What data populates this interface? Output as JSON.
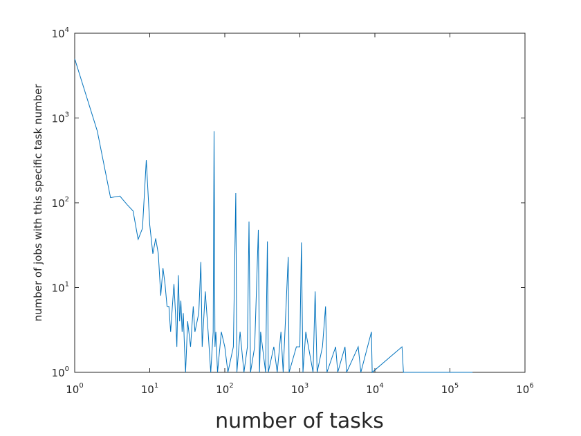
{
  "chart_data": {
    "type": "line",
    "x_label": "number of tasks",
    "y_label": "number of jobs with this specific task number",
    "x_log": true,
    "y_log": true,
    "xlim": [
      1,
      1000000
    ],
    "ylim": [
      1,
      10000
    ],
    "xticks": [
      {
        "value": 1,
        "label": "10^0"
      },
      {
        "value": 10,
        "label": "10^1"
      },
      {
        "value": 100,
        "label": "10^2"
      },
      {
        "value": 1000,
        "label": "10^3"
      },
      {
        "value": 10000,
        "label": "10^4"
      },
      {
        "value": 100000,
        "label": "10^5"
      },
      {
        "value": 1000000,
        "label": "10^6"
      }
    ],
    "yticks": [
      {
        "value": 1,
        "label": "10^0"
      },
      {
        "value": 10,
        "label": "10^1"
      },
      {
        "value": 100,
        "label": "10^2"
      },
      {
        "value": 1000,
        "label": "10^3"
      },
      {
        "value": 10000,
        "label": "10^4"
      }
    ],
    "grid": false,
    "series": [
      {
        "color": "#0072bd",
        "x": [
          1,
          2,
          3,
          4,
          5,
          6,
          7,
          8,
          9,
          10,
          11,
          12,
          13,
          14,
          15,
          16,
          17,
          18,
          19,
          20,
          21,
          22,
          23,
          24,
          25,
          26,
          27,
          28,
          29,
          30,
          32,
          35,
          38,
          40,
          45,
          48,
          50,
          55,
          60,
          65,
          70,
          72,
          74,
          76,
          80,
          90,
          100,
          110,
          130,
          140,
          145,
          160,
          180,
          200,
          210,
          220,
          250,
          280,
          290,
          300,
          350,
          370,
          380,
          450,
          500,
          560,
          600,
          700,
          720,
          900,
          1000,
          1050,
          1100,
          1200,
          1500,
          1600,
          1700,
          2000,
          2200,
          2300,
          3000,
          3200,
          4000,
          4200,
          6000,
          6500,
          9000,
          9200,
          23000,
          24000,
          200000
        ],
        "values": [
          5000,
          700,
          115,
          120,
          95,
          80,
          37,
          50,
          320,
          55,
          25,
          38,
          25,
          8,
          17,
          11,
          6,
          6,
          3,
          6,
          11,
          5,
          2,
          14,
          4,
          7,
          3,
          5,
          2,
          1,
          4,
          2,
          6,
          3,
          5,
          20,
          2,
          9,
          3,
          1,
          3,
          700,
          2,
          3,
          1,
          3,
          2,
          1,
          2,
          130,
          1,
          3,
          1,
          2,
          60,
          1,
          2,
          48,
          1,
          3,
          1,
          35,
          1,
          2,
          1,
          3,
          1,
          23,
          1,
          2,
          2,
          34,
          1,
          3,
          1,
          9,
          1,
          2,
          6,
          1,
          2,
          1,
          2,
          1,
          2,
          1,
          3,
          1,
          2,
          1,
          1
        ]
      }
    ]
  }
}
